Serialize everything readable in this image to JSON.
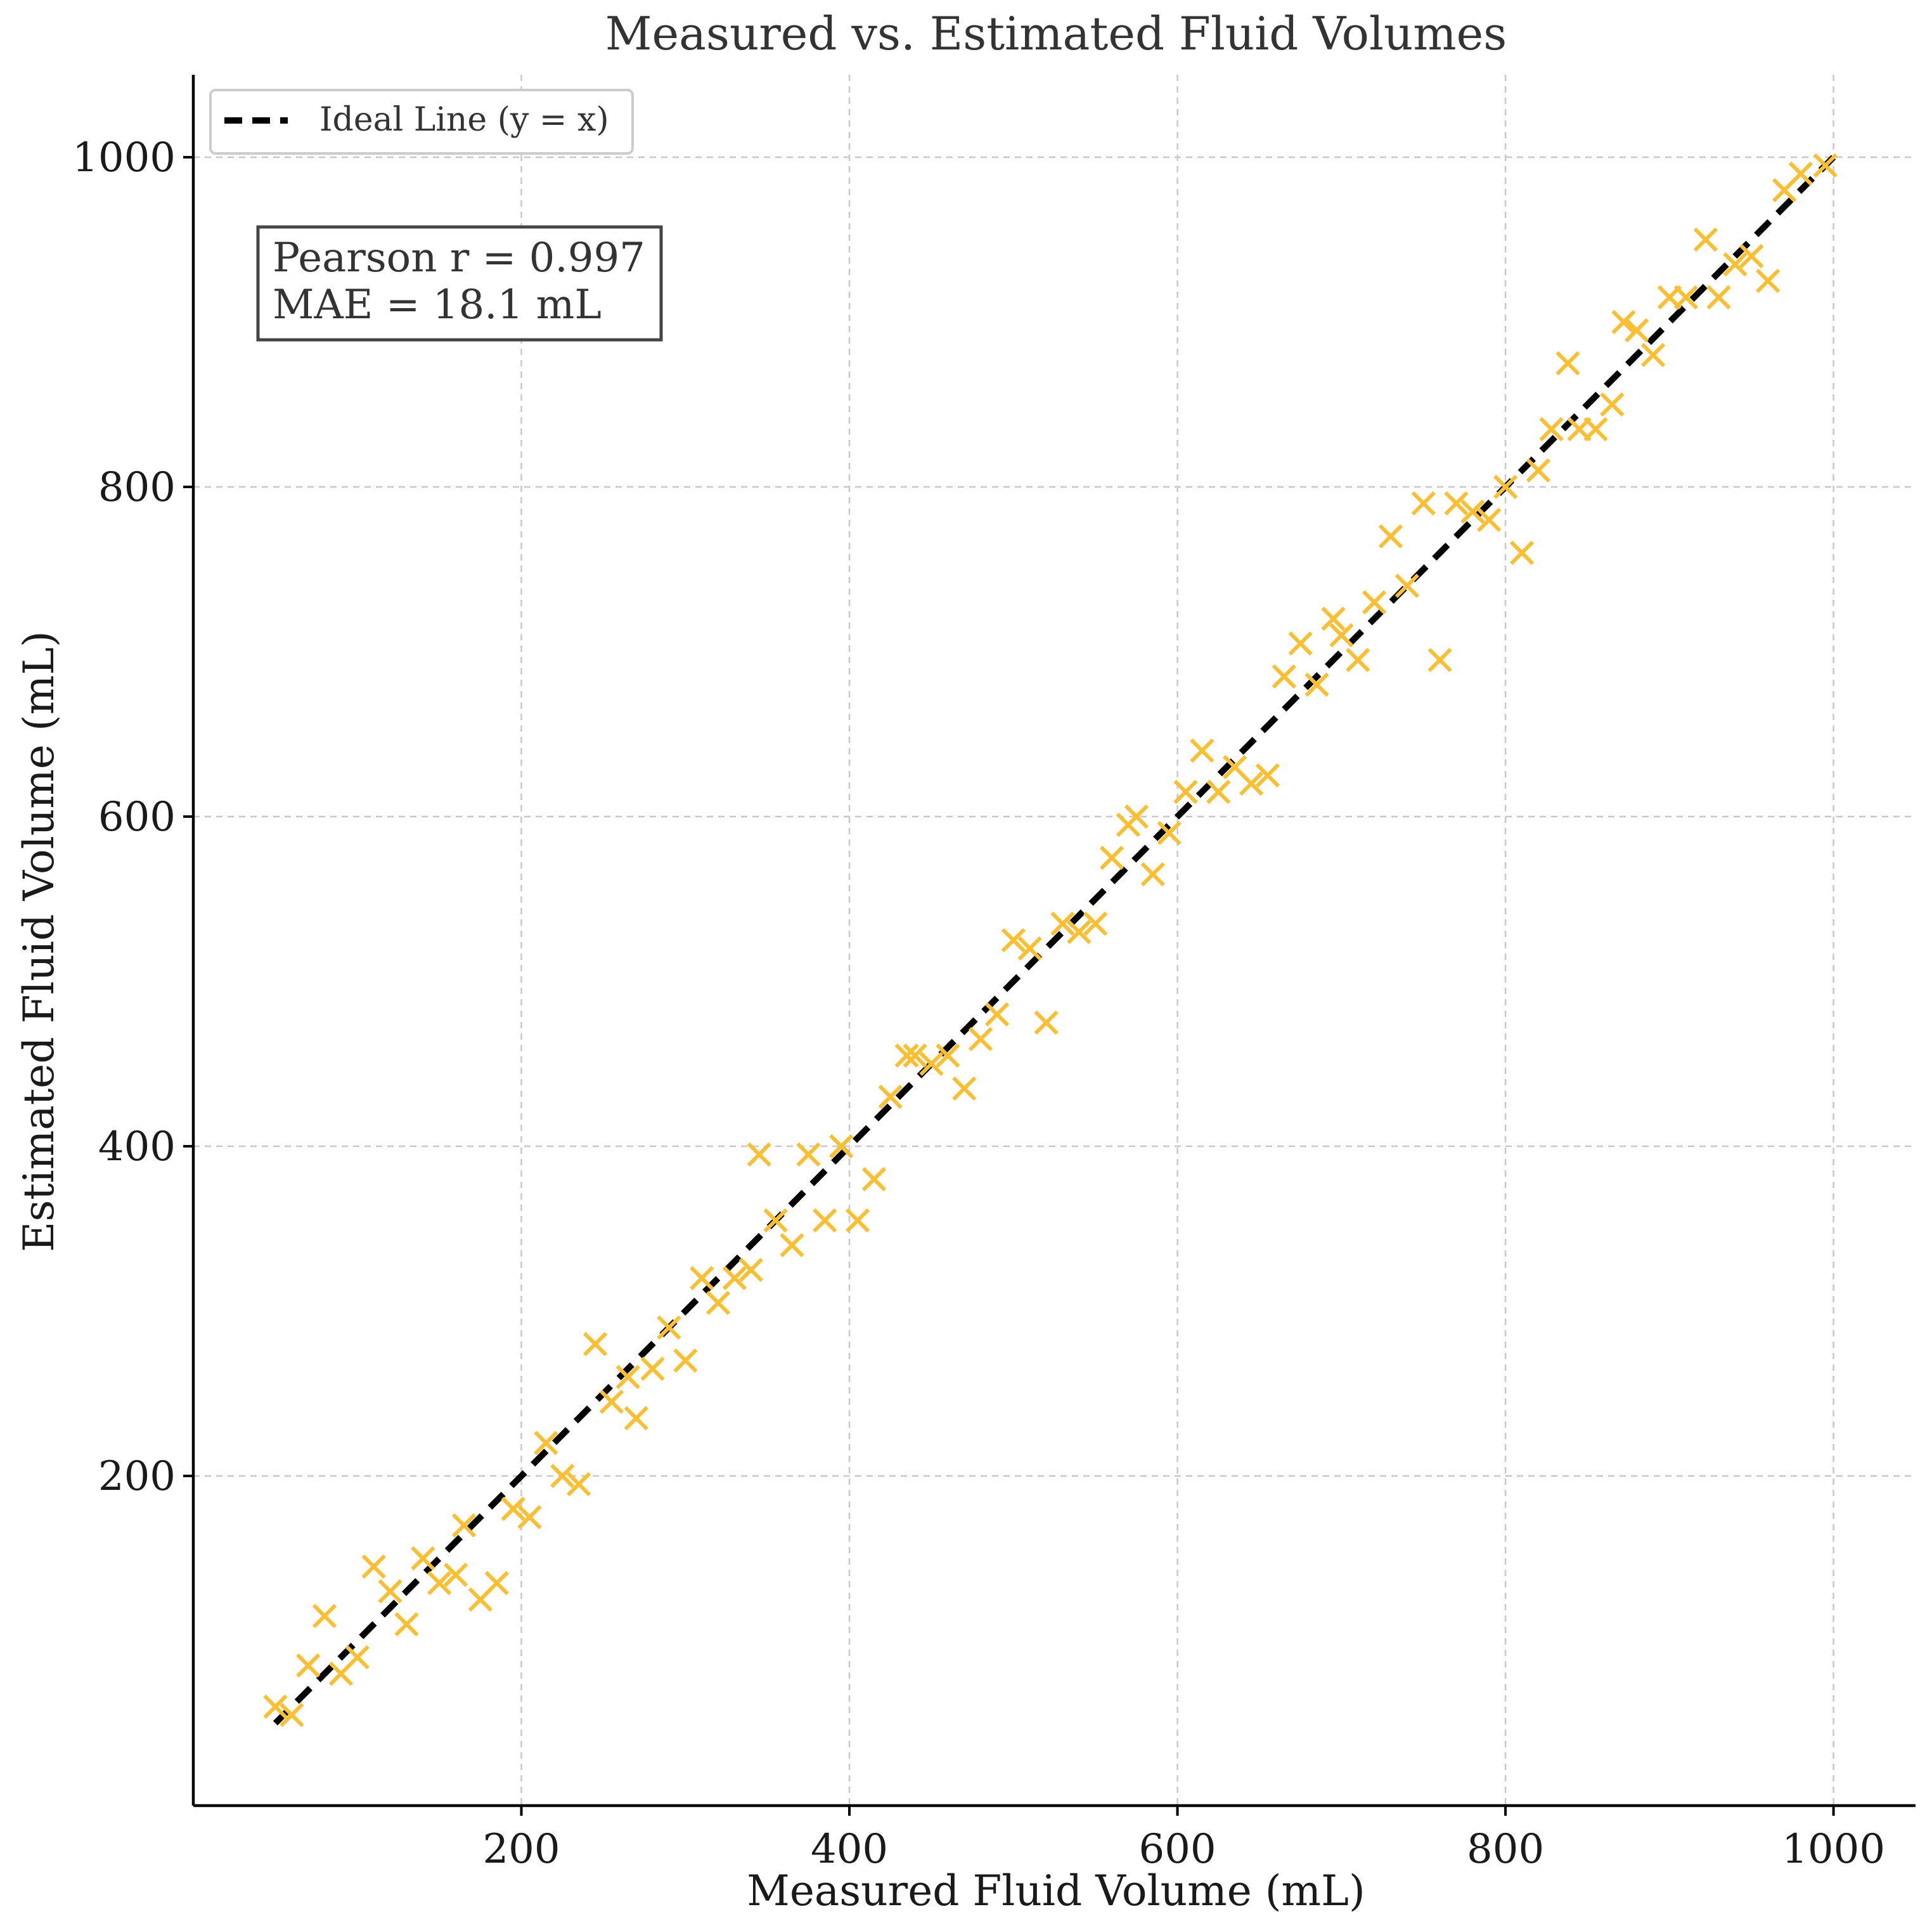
{
  "chart_data": {
    "type": "scatter",
    "title": "Measured vs. Estimated Fluid Volumes",
    "xlabel": "Measured Fluid Volume (mL)",
    "ylabel": "Estimated Fluid Volume (mL)",
    "xlim": [
      0,
      1050
    ],
    "ylim": [
      0,
      1050
    ],
    "xticks": [
      200,
      400,
      600,
      800,
      1000
    ],
    "yticks": [
      200,
      400,
      600,
      800,
      1000
    ],
    "grid": true,
    "legend_position": "top-left",
    "legend": [
      {
        "label": "Ideal Line (y = x)",
        "style": "dashed",
        "color": "#000000"
      }
    ],
    "annotation": {
      "lines": [
        "Pearson r = 0.997",
        "MAE = 18.1 mL"
      ],
      "position": "top-left"
    },
    "marker_color": "#FBBF33",
    "ideal_line": {
      "x": [
        50,
        1000
      ],
      "y": [
        50,
        1000
      ]
    },
    "series": [
      {
        "marker": "x",
        "points": [
          [
            50,
            60
          ],
          [
            60,
            55
          ],
          [
            70,
            85
          ],
          [
            80,
            115
          ],
          [
            90,
            80
          ],
          [
            100,
            90
          ],
          [
            110,
            145
          ],
          [
            120,
            130
          ],
          [
            130,
            110
          ],
          [
            140,
            150
          ],
          [
            150,
            135
          ],
          [
            160,
            140
          ],
          [
            165,
            170
          ],
          [
            175,
            125
          ],
          [
            185,
            135
          ],
          [
            195,
            180
          ],
          [
            205,
            175
          ],
          [
            215,
            220
          ],
          [
            225,
            200
          ],
          [
            235,
            195
          ],
          [
            245,
            280
          ],
          [
            255,
            245
          ],
          [
            265,
            260
          ],
          [
            270,
            235
          ],
          [
            280,
            265
          ],
          [
            290,
            290
          ],
          [
            300,
            270
          ],
          [
            310,
            320
          ],
          [
            320,
            305
          ],
          [
            330,
            320
          ],
          [
            340,
            325
          ],
          [
            345,
            395
          ],
          [
            355,
            355
          ],
          [
            365,
            340
          ],
          [
            375,
            395
          ],
          [
            385,
            355
          ],
          [
            395,
            400
          ],
          [
            405,
            355
          ],
          [
            415,
            380
          ],
          [
            425,
            430
          ],
          [
            435,
            455
          ],
          [
            440,
            455
          ],
          [
            450,
            450
          ],
          [
            460,
            455
          ],
          [
            470,
            435
          ],
          [
            480,
            465
          ],
          [
            490,
            480
          ],
          [
            500,
            525
          ],
          [
            510,
            520
          ],
          [
            520,
            475
          ],
          [
            530,
            535
          ],
          [
            540,
            530
          ],
          [
            550,
            535
          ],
          [
            560,
            575
          ],
          [
            570,
            595
          ],
          [
            575,
            600
          ],
          [
            585,
            565
          ],
          [
            595,
            590
          ],
          [
            605,
            615
          ],
          [
            615,
            640
          ],
          [
            625,
            615
          ],
          [
            635,
            630
          ],
          [
            645,
            620
          ],
          [
            655,
            625
          ],
          [
            665,
            685
          ],
          [
            675,
            705
          ],
          [
            685,
            680
          ],
          [
            695,
            720
          ],
          [
            700,
            710
          ],
          [
            710,
            695
          ],
          [
            720,
            730
          ],
          [
            730,
            770
          ],
          [
            740,
            740
          ],
          [
            750,
            790
          ],
          [
            760,
            695
          ],
          [
            770,
            790
          ],
          [
            780,
            785
          ],
          [
            790,
            780
          ],
          [
            800,
            800
          ],
          [
            810,
            760
          ],
          [
            820,
            810
          ],
          [
            828,
            835
          ],
          [
            838,
            875
          ],
          [
            845,
            835
          ],
          [
            855,
            835
          ],
          [
            865,
            850
          ],
          [
            872,
            900
          ],
          [
            880,
            895
          ],
          [
            890,
            880
          ],
          [
            900,
            915
          ],
          [
            910,
            915
          ],
          [
            922,
            950
          ],
          [
            930,
            915
          ],
          [
            940,
            935
          ],
          [
            950,
            940
          ],
          [
            960,
            925
          ],
          [
            970,
            980
          ],
          [
            980,
            990
          ],
          [
            995,
            995
          ]
        ]
      }
    ]
  }
}
